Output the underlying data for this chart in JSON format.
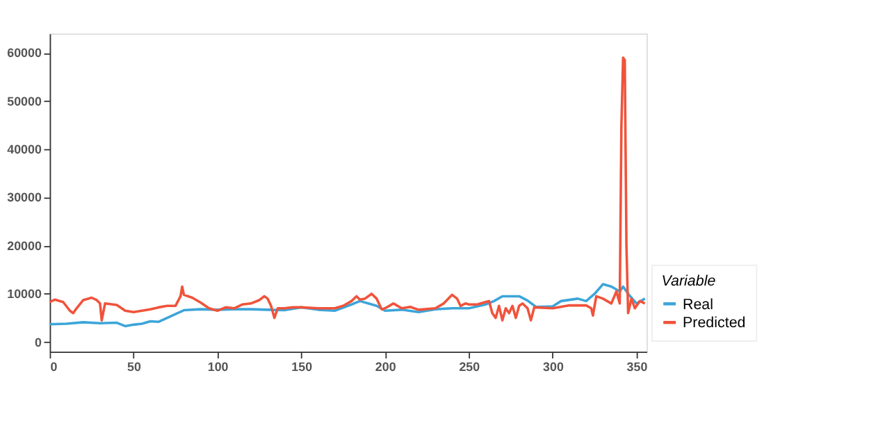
{
  "chart_data": {
    "type": "line",
    "legend_title": "Variable",
    "legend": "bottom right",
    "grid": false,
    "xlim": [
      0,
      356
    ],
    "xticks": [
      0,
      50,
      100,
      150,
      200,
      250,
      300,
      350
    ],
    "ylim": [
      -2000,
      64000
    ],
    "yticks": [
      0,
      10000,
      20000,
      30000,
      40000,
      50000,
      60000
    ],
    "series": [
      {
        "name": "Real",
        "color": "#3ca5d9",
        "x": [
          0,
          10,
          20,
          30,
          40,
          45,
          50,
          55,
          60,
          65,
          70,
          75,
          80,
          90,
          100,
          110,
          120,
          130,
          140,
          150,
          160,
          170,
          180,
          185,
          190,
          195,
          200,
          210,
          220,
          230,
          240,
          250,
          260,
          265,
          270,
          280,
          285,
          290,
          300,
          305,
          315,
          320,
          325,
          330,
          335,
          340,
          342,
          345,
          350,
          355
        ],
        "values": [
          3700,
          3800,
          4100,
          3900,
          4000,
          3300,
          3600,
          3800,
          4300,
          4200,
          5000,
          5800,
          6600,
          6800,
          6700,
          6800,
          6800,
          6700,
          6600,
          7200,
          6700,
          6500,
          7800,
          8500,
          8000,
          7500,
          6500,
          6700,
          6200,
          6800,
          7000,
          7000,
          7800,
          8500,
          9500,
          9500,
          8600,
          7300,
          7400,
          8500,
          9000,
          8500,
          10000,
          12000,
          11500,
          10500,
          11500,
          10000,
          8000,
          9000
        ]
      },
      {
        "name": "Predicted",
        "color": "#f0533b",
        "x": [
          0,
          3,
          8,
          12,
          14,
          16,
          20,
          25,
          28,
          30,
          31,
          33,
          40,
          45,
          50,
          55,
          60,
          65,
          70,
          75,
          78,
          79,
          80,
          85,
          90,
          95,
          100,
          105,
          110,
          115,
          120,
          125,
          128,
          130,
          132,
          134,
          136,
          140,
          145,
          150,
          160,
          170,
          175,
          180,
          183,
          185,
          188,
          192,
          195,
          198,
          200,
          205,
          210,
          215,
          220,
          230,
          235,
          240,
          243,
          245,
          248,
          250,
          255,
          260,
          262,
          264,
          266,
          268,
          270,
          272,
          274,
          276,
          278,
          280,
          282,
          285,
          287,
          289,
          300,
          310,
          320,
          323,
          324,
          326,
          330,
          335,
          338,
          340,
          341,
          342,
          343,
          344,
          345,
          347,
          349,
          352,
          355
        ],
        "values": [
          8300,
          8800,
          8300,
          6500,
          6000,
          7000,
          8700,
          9200,
          8700,
          8000,
          4500,
          8000,
          7700,
          6500,
          6200,
          6500,
          6800,
          7200,
          7500,
          7500,
          9500,
          11500,
          9800,
          9200,
          8200,
          7000,
          6500,
          7200,
          7000,
          7800,
          8000,
          8700,
          9500,
          9000,
          7500,
          5000,
          7000,
          7000,
          7200,
          7200,
          7000,
          7000,
          7500,
          8500,
          9500,
          8800,
          9000,
          10000,
          9000,
          6800,
          7000,
          8000,
          7000,
          7300,
          6700,
          7000,
          8000,
          9800,
          9000,
          7500,
          8000,
          7800,
          7800,
          8300,
          8500,
          6000,
          5000,
          7500,
          4500,
          7000,
          6000,
          7500,
          5000,
          7500,
          8000,
          7000,
          4500,
          7200,
          7000,
          7600,
          7600,
          7000,
          5500,
          9500,
          9000,
          8000,
          10500,
          8000,
          45000,
          59000,
          58500,
          20000,
          6000,
          9000,
          7000,
          8500,
          8000
        ]
      }
    ]
  }
}
